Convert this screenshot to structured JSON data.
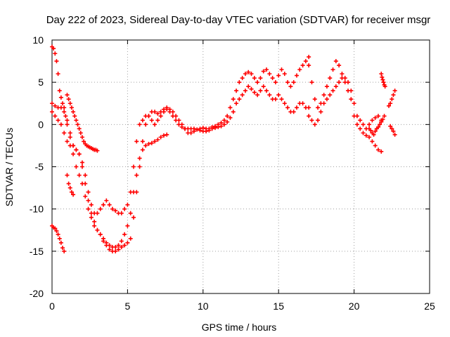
{
  "chart_data": {
    "type": "scatter",
    "title": "Day 222 of 2023, Sidereal Day-to-day VTEC variation (SDTVAR) for receiver msgr",
    "xlabel": "GPS time / hours",
    "ylabel": "SDTVAR / TECUs",
    "xlim": [
      0,
      25
    ],
    "ylim": [
      -20,
      10
    ],
    "xticks": [
      0,
      5,
      10,
      15,
      20,
      25
    ],
    "yticks": [
      -20,
      -15,
      -10,
      -5,
      0,
      5,
      10
    ],
    "grid": true,
    "marker": "plus",
    "color": "#ff0000",
    "series": [
      {
        "x": [
          0.0,
          0.1,
          0.2,
          0.3,
          0.4,
          0.5,
          0.6,
          0.7,
          0.8,
          0.9,
          1.0,
          1.2,
          1.4,
          1.6,
          1.8,
          2.0,
          2.2,
          2.4,
          2.6,
          2.8,
          3.0,
          3.2,
          3.4,
          3.6,
          3.8,
          4.0,
          4.2,
          4.4,
          4.6,
          4.8,
          5.0,
          5.2,
          5.4,
          5.6,
          5.8,
          6.0,
          6.2,
          6.4,
          6.6,
          6.8,
          7.0,
          7.2,
          7.4,
          7.6,
          7.8,
          8.0,
          8.2,
          8.4,
          8.6,
          8.8,
          9.0,
          9.2,
          9.4,
          9.6,
          9.8,
          10.0,
          10.2,
          10.4,
          10.6,
          10.8,
          11.0,
          11.2,
          11.4,
          11.6,
          11.8,
          12.0,
          12.2,
          12.4,
          12.6,
          12.8,
          13.0,
          13.2,
          13.4,
          13.6,
          13.8,
          14.0,
          14.2,
          14.4,
          14.6,
          14.8,
          15.0,
          15.2,
          15.4,
          15.6,
          15.8,
          16.0,
          16.2,
          16.4,
          16.6,
          16.8,
          17.0
        ],
        "y": [
          9.2,
          9.0,
          8.4,
          7.5,
          6.0,
          4.0,
          3.2,
          2.5,
          2.0,
          1.0,
          0.0,
          -1.5,
          -3.5,
          -5.0,
          -6.0,
          -7.0,
          -8.5,
          -10.0,
          -11.0,
          -12.0,
          -12.5,
          -13.0,
          -13.5,
          -14.0,
          -14.3,
          -14.5,
          -14.5,
          -14.3,
          -13.8,
          -13.0,
          -12.0,
          -10.5,
          -8.0,
          -6.0,
          -4.0,
          -2.0,
          0.0,
          1.0,
          1.5,
          1.5,
          1.3,
          1.5,
          1.8,
          2.0,
          1.8,
          1.5,
          1.0,
          0.5,
          0.0,
          -0.5,
          -1.0,
          -1.0,
          -0.8,
          -0.6,
          -0.5,
          -0.4,
          -0.5,
          -0.5,
          -0.3,
          -0.2,
          0.0,
          0.2,
          0.5,
          1.0,
          2.0,
          3.0,
          4.0,
          5.0,
          5.5,
          6.0,
          6.2,
          6.0,
          5.5,
          5.0,
          5.5,
          6.3,
          6.5,
          6.0,
          5.5,
          5.0,
          5.8,
          6.5,
          6.0,
          5.0,
          4.5,
          5.0,
          5.8,
          6.5,
          7.0,
          7.5,
          8.0
        ]
      },
      {
        "x": [
          0.0,
          0.2,
          0.4,
          0.6,
          0.8,
          1.0,
          1.2,
          1.4,
          1.6,
          1.8,
          2.0,
          2.2,
          2.4,
          2.6,
          2.8,
          3.0,
          3.2,
          3.4,
          3.6,
          3.8,
          4.0,
          4.2,
          4.4,
          4.6,
          4.8,
          5.0,
          5.2,
          5.4,
          5.6,
          5.8,
          6.0,
          6.2,
          6.4,
          6.6,
          6.8,
          7.0,
          7.2,
          7.4,
          7.6,
          7.8,
          8.0,
          8.2,
          8.4,
          8.6,
          8.8,
          9.0,
          9.2,
          9.4,
          9.6,
          9.8,
          10.0,
          10.2,
          10.4,
          10.6,
          10.8,
          11.0,
          11.2,
          11.4,
          11.6,
          11.8,
          12.0,
          12.2,
          12.4,
          12.6,
          12.8,
          13.0,
          13.2,
          13.4,
          13.6,
          13.8,
          14.0,
          14.2,
          14.4,
          14.6,
          14.8,
          15.0,
          15.2,
          15.4,
          15.6,
          15.8,
          16.0,
          16.2,
          16.4,
          16.6,
          16.8,
          17.0
        ],
        "y": [
          2.5,
          2.2,
          2.0,
          2.0,
          1.5,
          0.5,
          -1.0,
          -2.5,
          -3.0,
          -3.5,
          -4.5,
          -6.0,
          -8.0,
          -9.5,
          -10.5,
          -10.5,
          -10.0,
          -9.5,
          -9.0,
          -9.5,
          -10.0,
          -10.2,
          -10.5,
          -10.5,
          -10.0,
          -9.5,
          -8.0,
          -5.0,
          -2.0,
          0.0,
          0.5,
          1.0,
          1.0,
          0.5,
          0.0,
          0.5,
          1.0,
          1.5,
          1.8,
          1.5,
          1.0,
          0.5,
          0.0,
          -0.3,
          -0.5,
          -0.5,
          -0.5,
          -0.5,
          -0.6,
          -0.7,
          -0.8,
          -0.8,
          -0.7,
          -0.5,
          -0.4,
          -0.3,
          -0.2,
          0.0,
          0.3,
          0.8,
          1.5,
          2.5,
          3.0,
          3.5,
          4.0,
          4.5,
          4.2,
          3.8,
          3.5,
          4.0,
          4.5,
          4.0,
          3.5,
          3.0,
          3.0,
          3.5,
          3.0,
          2.5,
          2.0,
          1.5,
          1.5,
          2.0,
          2.5,
          2.5,
          2.0,
          2.0
        ]
      },
      {
        "x": [
          0.0,
          0.2,
          0.4,
          0.6,
          0.8,
          1.0,
          1.2,
          1.4,
          1.6,
          1.8,
          2.0,
          2.2,
          2.4,
          2.6,
          2.8,
          3.0,
          3.2,
          3.4,
          3.6,
          3.8,
          4.0,
          4.2,
          4.4,
          4.6,
          4.8,
          5.0,
          5.2,
          5.4,
          5.6,
          5.8,
          6.0,
          6.2,
          6.4,
          6.6,
          6.8,
          7.0,
          7.2,
          7.4,
          7.6
        ],
        "y": [
          1.5,
          1.0,
          0.5,
          0.0,
          -1.0,
          -2.0,
          -2.5,
          -2.5,
          -3.0,
          -3.5,
          -5.0,
          -7.0,
          -9.0,
          -10.5,
          -11.5,
          -12.5,
          -13.0,
          -13.8,
          -14.3,
          -14.8,
          -15.0,
          -15.0,
          -14.8,
          -14.5,
          -14.3,
          -14.0,
          -13.5,
          -11.0,
          -8.0,
          -5.0,
          -3.0,
          -2.5,
          -2.3,
          -2.2,
          -2.0,
          -1.8,
          -1.5,
          -1.3,
          -1.2
        ]
      },
      {
        "x": [
          1.0,
          1.1,
          1.2,
          1.3,
          1.4,
          1.5,
          1.6,
          1.7,
          1.8,
          1.9,
          2.0,
          2.1,
          2.2,
          2.3,
          2.4,
          2.5,
          2.6,
          2.7,
          2.8,
          2.9,
          3.0
        ],
        "y": [
          3.5,
          3.0,
          2.5,
          2.0,
          1.5,
          1.0,
          0.5,
          0.0,
          -0.5,
          -1.0,
          -1.5,
          -2.0,
          -2.3,
          -2.5,
          -2.6,
          -2.7,
          -2.8,
          -2.9,
          -3.0,
          -3.0,
          -3.1
        ]
      },
      {
        "x": [
          0.0,
          0.1,
          0.2,
          0.3,
          0.4,
          0.5,
          0.6,
          0.7,
          0.8
        ],
        "y": [
          -12.0,
          -12.2,
          -12.3,
          -12.6,
          -13.0,
          -13.5,
          -14.0,
          -14.6,
          -15.0
        ]
      },
      {
        "x": [
          1.0,
          1.1,
          1.2,
          1.3,
          1.4
        ],
        "y": [
          -6.0,
          -7.0,
          -7.5,
          -8.0,
          -8.3
        ]
      },
      {
        "x": [
          17.0,
          17.2,
          17.4,
          17.6,
          17.8,
          18.0,
          18.2,
          18.4,
          18.6,
          18.8,
          19.0,
          19.2,
          19.4,
          19.6,
          19.8,
          20.0,
          20.2,
          20.4,
          20.6,
          20.8,
          21.0,
          21.2,
          21.4,
          21.6,
          21.8
        ],
        "y": [
          1.0,
          0.5,
          0.0,
          0.5,
          1.5,
          2.5,
          3.0,
          3.5,
          4.0,
          4.5,
          5.0,
          5.5,
          5.0,
          4.0,
          3.0,
          1.0,
          0.0,
          -0.5,
          -1.0,
          -1.3,
          -1.5,
          -2.0,
          -2.5,
          -3.0,
          -3.2
        ]
      },
      {
        "x": [
          17.0,
          17.2,
          17.4,
          17.6,
          17.8,
          18.0,
          18.2,
          18.4,
          18.6,
          18.8,
          19.0,
          19.2,
          19.4,
          19.6,
          19.8,
          20.0,
          20.2,
          20.4,
          20.6,
          20.8,
          21.0,
          21.2,
          21.4,
          21.6,
          21.8
        ],
        "y": [
          7.0,
          5.0,
          3.0,
          2.0,
          2.5,
          3.5,
          4.5,
          5.5,
          6.5,
          7.5,
          7.0,
          6.0,
          5.5,
          5.0,
          4.0,
          2.5,
          1.0,
          0.5,
          0.0,
          -0.5,
          0.0,
          0.5,
          0.8,
          1.0,
          0.5
        ]
      },
      {
        "x": [
          21.0,
          21.1,
          21.2,
          21.3,
          21.4,
          21.5,
          21.6,
          21.7,
          21.8,
          21.9,
          22.0
        ],
        "y": [
          -0.5,
          -0.7,
          -1.0,
          -1.2,
          -0.8,
          -0.5,
          -0.3,
          0.0,
          0.3,
          0.6,
          1.0
        ]
      },
      {
        "x": [
          21.8,
          21.85,
          21.9,
          21.95,
          22.0,
          22.05
        ],
        "y": [
          6.0,
          5.6,
          5.3,
          5.0,
          4.7,
          4.5
        ]
      },
      {
        "x": [
          22.3,
          22.4,
          22.5,
          22.6,
          22.7
        ],
        "y": [
          2.2,
          2.5,
          3.0,
          3.5,
          4.0
        ]
      },
      {
        "x": [
          22.4,
          22.5,
          22.6,
          22.7
        ],
        "y": [
          -0.2,
          -0.5,
          -0.8,
          -1.2
        ]
      }
    ]
  }
}
